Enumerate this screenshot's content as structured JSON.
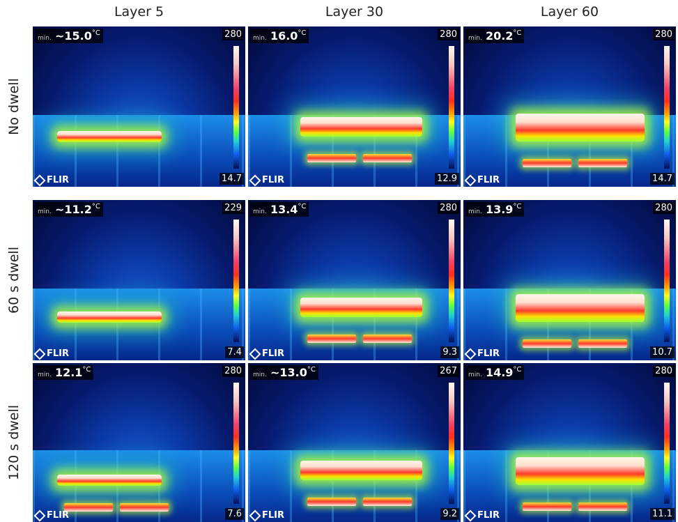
{
  "columns": [
    "Layer 5",
    "Layer 30",
    "Layer 60"
  ],
  "rows": [
    {
      "label": "No dwell",
      "cells": [
        {
          "min_label": "min.",
          "min": "~15.0",
          "unit": "°C",
          "scale_max": "280",
          "scale_min": "14.7",
          "logo": "FLIR"
        },
        {
          "min_label": "min.",
          "min": "16.0",
          "unit": "°C",
          "scale_max": "280",
          "scale_min": "12.9",
          "logo": "FLIR"
        },
        {
          "min_label": "min.",
          "min": "20.2",
          "unit": "°C",
          "scale_max": "280",
          "scale_min": "14.7",
          "logo": "FLIR"
        }
      ]
    },
    {
      "label": "60 s dwell",
      "cells": [
        {
          "min_label": "min.",
          "min": "~11.2",
          "unit": "°C",
          "scale_max": "229",
          "scale_min": "7.4",
          "logo": "FLIR"
        },
        {
          "min_label": "min.",
          "min": "13.4",
          "unit": "°C",
          "scale_max": "280",
          "scale_min": "9.3",
          "logo": "FLIR"
        },
        {
          "min_label": "min.",
          "min": "13.9",
          "unit": "°C",
          "scale_max": "280",
          "scale_min": "10.7",
          "logo": "FLIR"
        }
      ]
    },
    {
      "label": "120 s dwell",
      "cells": [
        {
          "min_label": "min.",
          "min": "12.1",
          "unit": "°C",
          "scale_max": "280",
          "scale_min": "7.6",
          "logo": "FLIR"
        },
        {
          "min_label": "min.",
          "min": "~13.0",
          "unit": "°C",
          "scale_max": "267",
          "scale_min": "9.2",
          "logo": "FLIR"
        },
        {
          "min_label": "min.",
          "min": "14.9",
          "unit": "°C",
          "scale_max": "280",
          "scale_min": "11.1",
          "logo": "FLIR"
        }
      ]
    }
  ]
}
